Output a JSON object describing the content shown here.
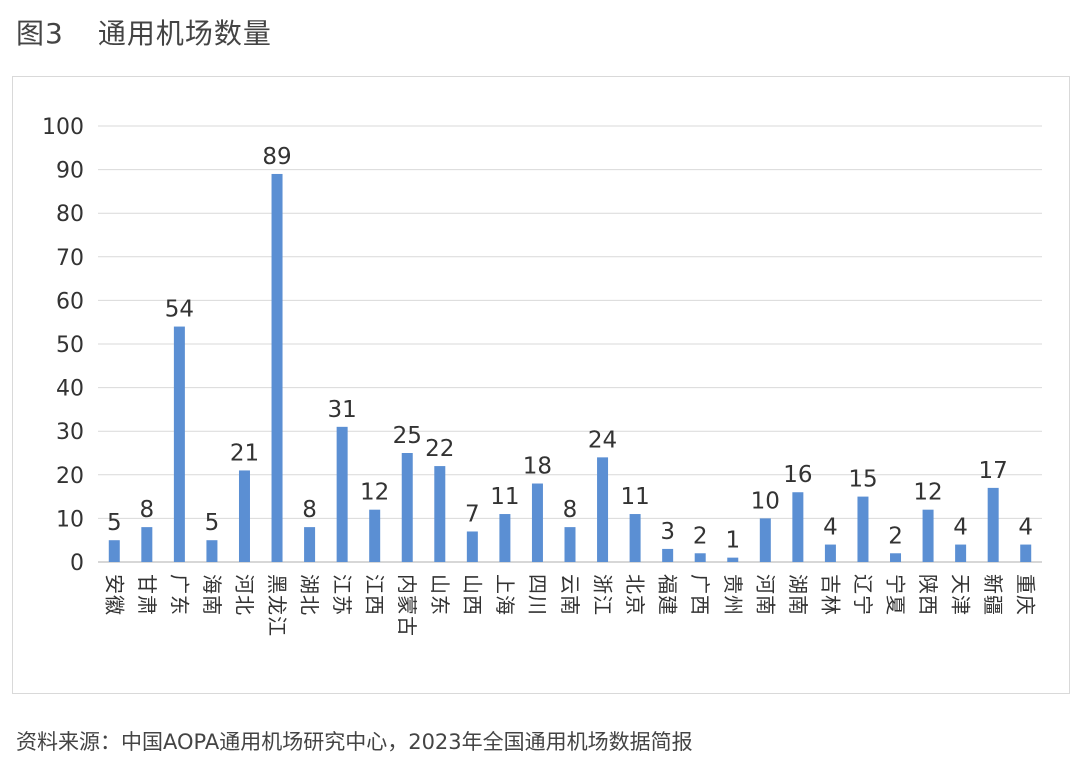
{
  "figure": {
    "label": "图3",
    "title": "通用机场数量",
    "source": "资料来源：中国AOPA通用机场研究中心，2023年全国通用机场数据简报"
  },
  "colors": {
    "bar": "#5b8fd3",
    "grid": "#d9d9d9",
    "axis": "#bfbfbf",
    "text": "#333333"
  },
  "chart_data": {
    "type": "bar",
    "title": "通用机场数量",
    "xlabel": "",
    "ylabel": "",
    "ylim": [
      0,
      100
    ],
    "yticks": [
      0,
      10,
      20,
      30,
      40,
      50,
      60,
      70,
      80,
      90,
      100
    ],
    "grid": true,
    "legend": "none",
    "categories": [
      "安徽",
      "甘肃",
      "广东",
      "海南",
      "河北",
      "黑龙江",
      "湖北",
      "江苏",
      "江西",
      "内蒙古",
      "山东",
      "山西",
      "上海",
      "四川",
      "云南",
      "浙江",
      "北京",
      "福建",
      "广西",
      "贵州",
      "河南",
      "湖南",
      "吉林",
      "辽宁",
      "宁夏",
      "陕西",
      "天津",
      "新疆",
      "重庆"
    ],
    "values": [
      5,
      8,
      54,
      5,
      21,
      89,
      8,
      31,
      12,
      25,
      22,
      7,
      11,
      18,
      8,
      24,
      11,
      3,
      2,
      1,
      10,
      16,
      4,
      15,
      2,
      12,
      4,
      17,
      4
    ]
  }
}
